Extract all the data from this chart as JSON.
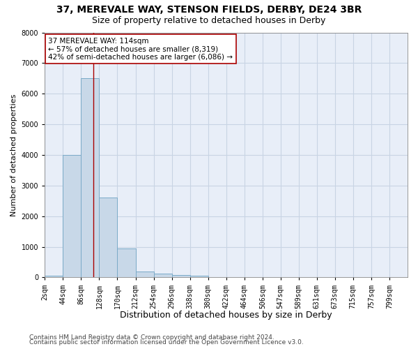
{
  "title1": "37, MEREVALE WAY, STENSON FIELDS, DERBY, DE24 3BR",
  "title2": "Size of property relative to detached houses in Derby",
  "xlabel": "Distribution of detached houses by size in Derby",
  "ylabel": "Number of detached properties",
  "bin_edges": [
    2,
    44,
    86,
    128,
    170,
    212,
    254,
    296,
    338,
    380,
    422,
    464,
    506,
    547,
    589,
    631,
    673,
    715,
    757,
    799,
    841
  ],
  "bin_counts": [
    50,
    4000,
    6500,
    2600,
    950,
    200,
    120,
    80,
    50,
    20,
    5,
    0,
    0,
    0,
    0,
    0,
    0,
    0,
    0,
    0
  ],
  "bar_color": "#c8d8e8",
  "bar_edge_color": "#7aaac8",
  "property_size": 114,
  "property_line_color": "#aa0000",
  "annotation_line1": "37 MEREVALE WAY: 114sqm",
  "annotation_line2": "← 57% of detached houses are smaller (8,319)",
  "annotation_line3": "42% of semi-detached houses are larger (6,086) →",
  "annotation_box_color": "#ffffff",
  "annotation_box_edge": "#aa0000",
  "ylim": [
    0,
    8000
  ],
  "yticks": [
    0,
    1000,
    2000,
    3000,
    4000,
    5000,
    6000,
    7000,
    8000
  ],
  "grid_color": "#c8d4e4",
  "background_color": "#e8eef8",
  "footer1": "Contains HM Land Registry data © Crown copyright and database right 2024.",
  "footer2": "Contains public sector information licensed under the Open Government Licence v3.0.",
  "title1_fontsize": 10,
  "title2_fontsize": 9,
  "xlabel_fontsize": 9,
  "ylabel_fontsize": 8,
  "tick_fontsize": 7,
  "annotation_fontsize": 7.5,
  "footer_fontsize": 6.5
}
